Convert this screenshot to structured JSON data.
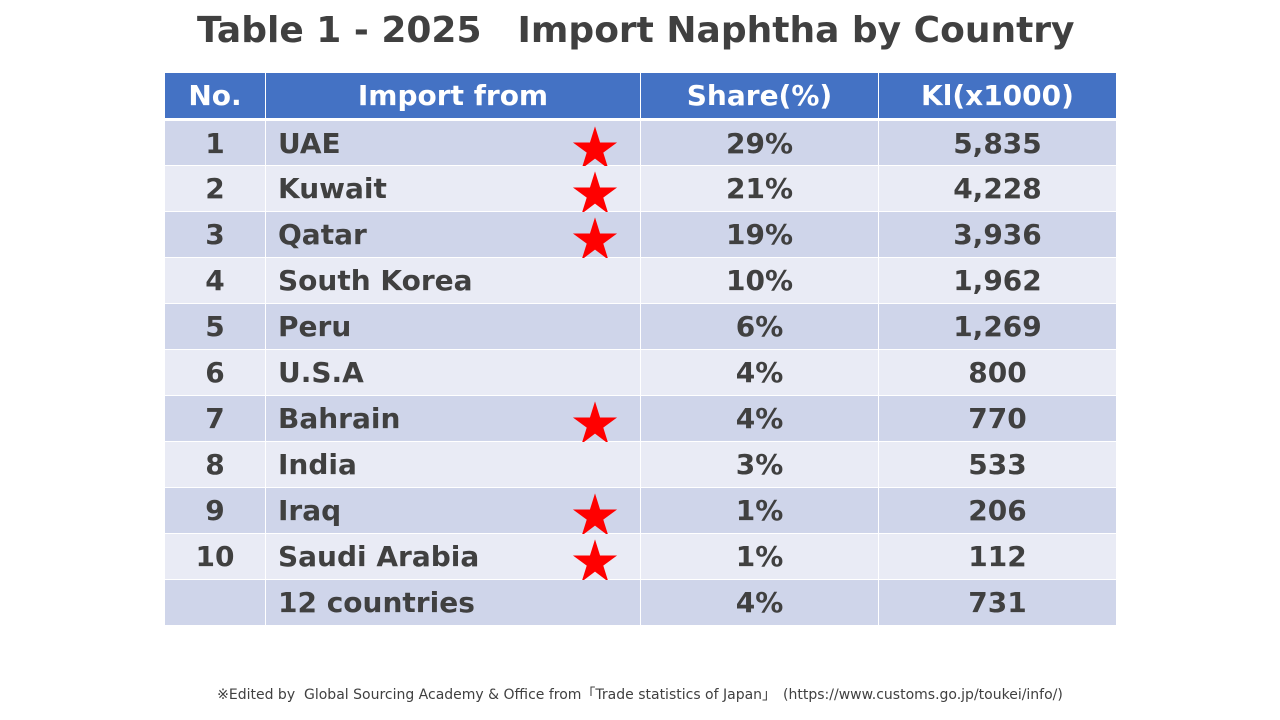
{
  "title": "Table 1 - 2025 Import Naphtha by Country",
  "table": {
    "header": [
      "No.",
      "Import from",
      "Share(%)",
      "Kl(x1000)"
    ],
    "rows": [
      {
        "no": "1",
        "country": "UAE",
        "starred": true,
        "share": "29%",
        "kl": "5,835"
      },
      {
        "no": "2",
        "country": "Kuwait",
        "starred": true,
        "share": "21%",
        "kl": "4,228"
      },
      {
        "no": "3",
        "country": "Qatar",
        "starred": true,
        "share": "19%",
        "kl": "3,936"
      },
      {
        "no": "4",
        "country": "South Korea",
        "starred": false,
        "share": "10%",
        "kl": "1,962"
      },
      {
        "no": "5",
        "country": "Peru",
        "starred": false,
        "share": "6%",
        "kl": "1,269"
      },
      {
        "no": "6",
        "country": "U.S.A",
        "starred": false,
        "share": "4%",
        "kl": "800"
      },
      {
        "no": "7",
        "country": "Bahrain",
        "starred": true,
        "share": "4%",
        "kl": "770"
      },
      {
        "no": "8",
        "country": "India",
        "starred": false,
        "share": "3%",
        "kl": "533"
      },
      {
        "no": "9",
        "country": "Iraq",
        "starred": true,
        "share": "1%",
        "kl": "206"
      },
      {
        "no": "10",
        "country": "Saudi Arabia",
        "starred": true,
        "share": "1%",
        "kl": "112"
      },
      {
        "country": "12 countries",
        "starred": false,
        "share": "4%",
        "kl": "731"
      }
    ]
  },
  "footnote": "※Edited by  Global Sourcing Academy & Office from「Trade statistics of Japan」　(https://www.customs.go.jp/toukei/info/)"
}
